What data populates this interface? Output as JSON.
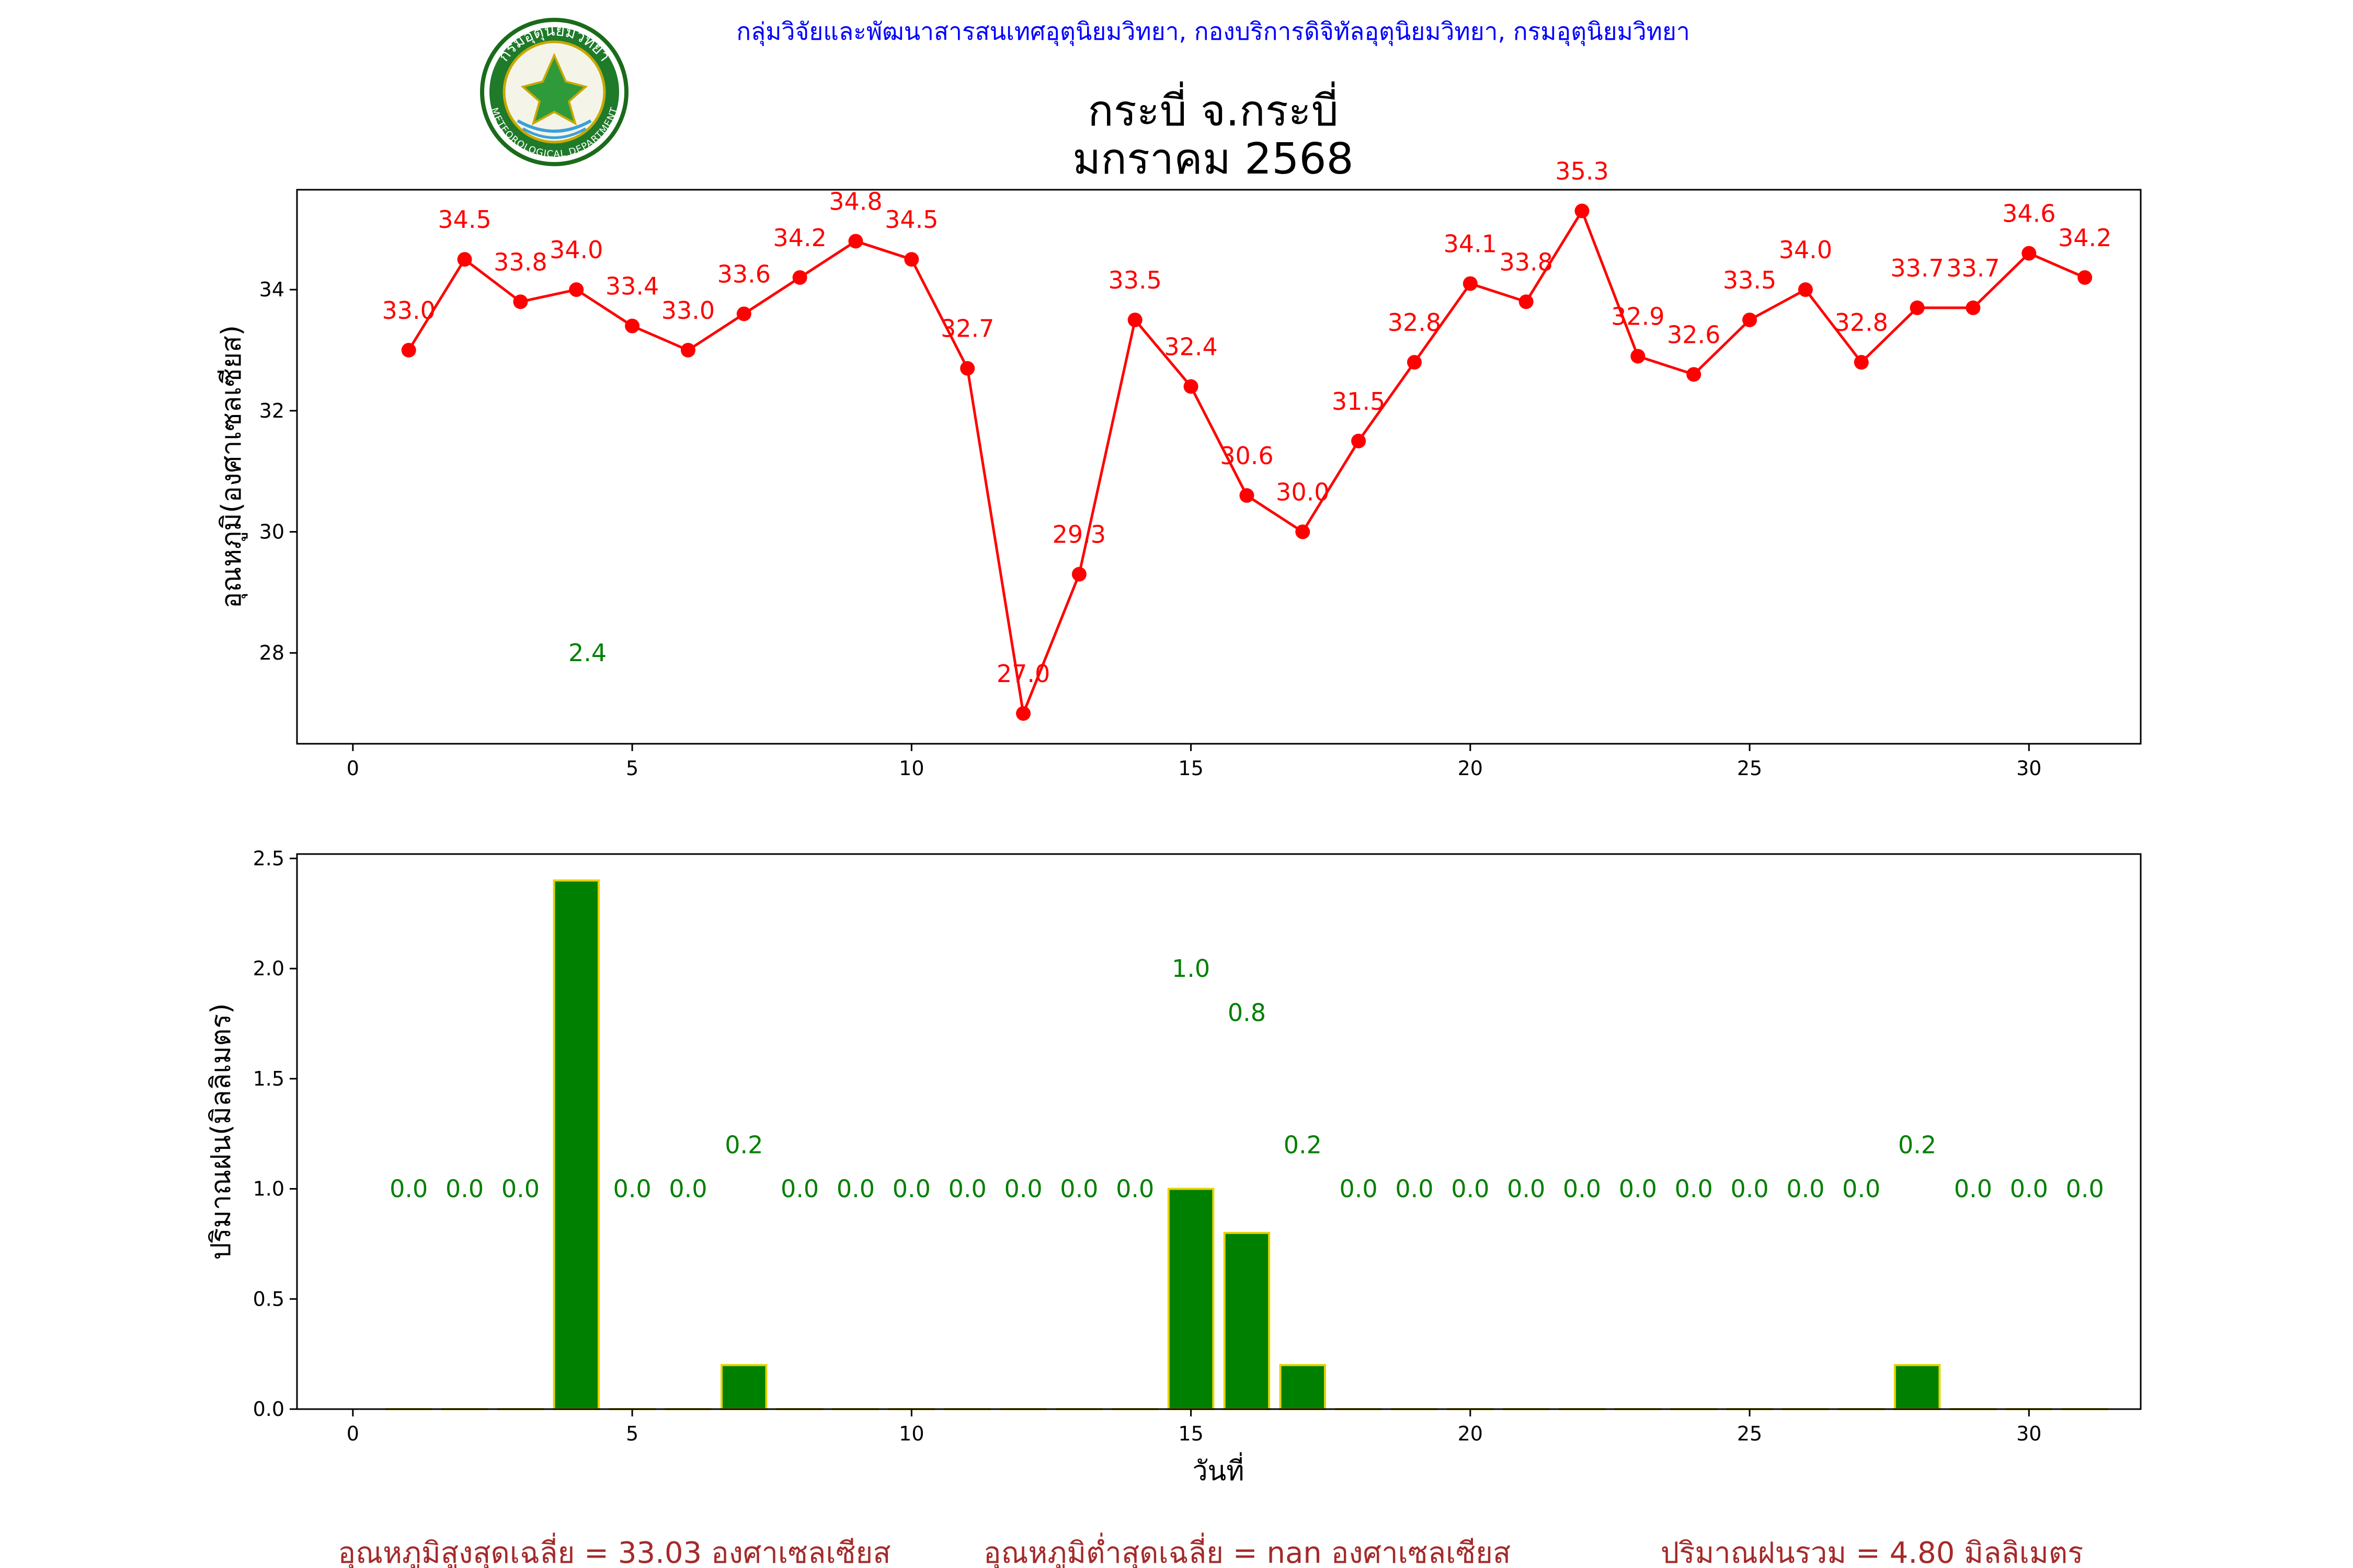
{
  "header": {
    "credit": "กลุ่มวิจัยและพัฒนาสารสนเทศอุตุนิยมวิทยา, กองบริการดิจิทัลอุตุนิยมวิทยา, กรมอุตุนิยมวิทยา",
    "title_line1": "กระบี่ จ.กระบี่",
    "title_line2": "มกราคม 2568",
    "logo_icon": "meteorological-department-seal-icon",
    "logo_text_top": "กรมอุตุนิยมวิทยา",
    "logo_text_bottom": "METEOROLOGICAL DEPARTMENT"
  },
  "colors": {
    "temp": "#ff0000",
    "rain_fill": "#008000",
    "rain_edge": "#e6d300",
    "rain_label": "#008000",
    "summary": "#a52a2a",
    "credit": "#0000ff"
  },
  "chart_data": [
    {
      "type": "line",
      "ylabel": "อุณหภูมิ(องศาเซลเซียส)",
      "xlabel": "",
      "xlim": [
        -1,
        32
      ],
      "ylim": [
        26.5,
        35.65
      ],
      "xticks": [
        0,
        5,
        10,
        15,
        20,
        25,
        30
      ],
      "yticks": [
        28,
        30,
        32,
        34
      ],
      "series": [
        {
          "x": [
            1,
            2,
            3,
            4,
            5,
            6,
            7,
            8,
            9,
            10,
            11,
            12,
            13,
            14,
            15,
            16,
            17,
            18,
            19,
            20,
            21,
            22,
            23,
            24,
            25,
            26,
            27,
            28,
            29,
            30,
            31
          ],
          "values": [
            33.0,
            34.5,
            33.8,
            34.0,
            33.4,
            33.0,
            33.6,
            34.2,
            34.8,
            34.5,
            32.7,
            27.0,
            29.3,
            33.5,
            32.4,
            30.6,
            30.0,
            31.5,
            32.8,
            34.1,
            33.8,
            35.3,
            32.9,
            32.6,
            33.5,
            34.0,
            32.8,
            33.7,
            33.7,
            34.6,
            34.2
          ],
          "labels": [
            "33.0",
            "34.5",
            "33.8",
            "34.0",
            "33.4",
            "33.0",
            "33.6",
            "34.2",
            "34.8",
            "34.5",
            "32.7",
            "27.0",
            "29.3",
            "33.5",
            "32.4",
            "30.6",
            "30.0",
            "31.5",
            "32.8",
            "34.1",
            "33.8",
            "35.3",
            "32.9",
            "32.6",
            "33.5",
            "34.0",
            "32.8",
            "33.7",
            "33.7",
            "34.6",
            "34.2"
          ]
        }
      ],
      "annotations": [
        {
          "text": "2.4",
          "x": 4.2,
          "y": 28.0
        }
      ],
      "grid": false
    },
    {
      "type": "bar",
      "ylabel": "ปริมาณฝน(มิลลิเมตร)",
      "xlabel": "วันที่",
      "xlim": [
        -1,
        32
      ],
      "ylim": [
        0,
        2.52
      ],
      "xticks": [
        0,
        5,
        10,
        15,
        20,
        25,
        30
      ],
      "yticks": [
        "0.0",
        "0.5",
        "1.0",
        "1.5",
        "2.0",
        "2.5"
      ],
      "x": [
        1,
        2,
        3,
        4,
        5,
        6,
        7,
        8,
        9,
        10,
        11,
        12,
        13,
        14,
        15,
        16,
        17,
        18,
        19,
        20,
        21,
        22,
        23,
        24,
        25,
        26,
        27,
        28,
        29,
        30,
        31
      ],
      "values": [
        0.0,
        0.0,
        0.0,
        2.4,
        0.0,
        0.0,
        0.2,
        0.0,
        0.0,
        0.0,
        0.0,
        0.0,
        0.0,
        0.0,
        1.0,
        0.8,
        0.2,
        0.0,
        0.0,
        0.0,
        0.0,
        0.0,
        0.0,
        0.0,
        0.0,
        0.0,
        0.0,
        0.2,
        0.0,
        0.0,
        0.0
      ],
      "labels": [
        "0.0",
        "0.0",
        "0.0",
        "",
        "0.0",
        "0.0",
        "0.2",
        "0.0",
        "0.0",
        "0.0",
        "0.0",
        "0.0",
        "0.0",
        "0.0",
        "1.0",
        "0.8",
        "0.2",
        "0.0",
        "0.0",
        "0.0",
        "0.0",
        "0.0",
        "0.0",
        "0.0",
        "0.0",
        "0.0",
        "0.0",
        "0.2",
        "0.0",
        "0.0",
        "0.0"
      ],
      "label_y": [
        1.0,
        1.0,
        1.0,
        null,
        1.0,
        1.0,
        1.2,
        1.0,
        1.0,
        1.0,
        1.0,
        1.0,
        1.0,
        1.0,
        2.0,
        1.8,
        1.2,
        1.0,
        1.0,
        1.0,
        1.0,
        1.0,
        1.0,
        1.0,
        1.0,
        1.0,
        1.0,
        1.2,
        1.0,
        1.0,
        1.0
      ],
      "grid": false
    }
  ],
  "summary": {
    "max_avg": "อุณหภูมิสูงสุดเฉลี่ย = 33.03 องศาเซลเซียส",
    "min_avg": "อุณหภูมิต่ำสุดเฉลี่ย = nan องศาเซลเซียส",
    "rain_total": "ปริมาณฝนรวม = 4.80 มิลลิเมตร"
  }
}
